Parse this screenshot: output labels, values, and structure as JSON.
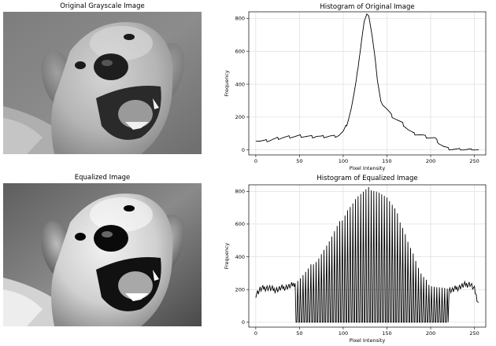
{
  "panels": {
    "original_image": {
      "title": "Original Grayscale Image"
    },
    "equalized_image": {
      "title": "Equalized Image"
    }
  },
  "chart_data": [
    {
      "type": "line",
      "title": "Histogram of Original Image",
      "xlabel": "Pixel Intensity",
      "ylabel": "Frequency",
      "xlim": [
        -8,
        263
      ],
      "ylim": [
        -30,
        840
      ],
      "xticks": [
        0,
        50,
        100,
        150,
        200,
        250
      ],
      "yticks": [
        0,
        200,
        400,
        600,
        800
      ],
      "grid": true,
      "series": [
        {
          "color": "#000000",
          "x": [
            0,
            5,
            10,
            15,
            20,
            25,
            30,
            35,
            40,
            45,
            50,
            55,
            60,
            65,
            70,
            75,
            80,
            85,
            90,
            95,
            100,
            103,
            106,
            109,
            112,
            115,
            118,
            121,
            124,
            127,
            130,
            133,
            136,
            139,
            142,
            145,
            148,
            151,
            155,
            160,
            165,
            170,
            175,
            180,
            185,
            190,
            195,
            200,
            205,
            210,
            215,
            220,
            225,
            230,
            235,
            240,
            245,
            250,
            255
          ],
          "y": [
            60,
            55,
            55,
            58,
            65,
            70,
            75,
            78,
            80,
            82,
            85,
            83,
            82,
            80,
            84,
            80,
            82,
            84,
            82,
            90,
            110,
            140,
            190,
            250,
            330,
            420,
            550,
            670,
            780,
            820,
            800,
            700,
            580,
            420,
            320,
            280,
            260,
            240,
            210,
            190,
            170,
            150,
            120,
            100,
            95,
            90,
            80,
            75,
            70,
            40,
            20,
            8,
            5,
            3,
            2,
            2,
            1,
            1,
            0
          ]
        }
      ]
    },
    {
      "type": "line",
      "title": "Histogram of Equalized Image",
      "xlabel": "Pixel Intensity",
      "ylabel": "Frequency",
      "xlim": [
        -8,
        263
      ],
      "ylim": [
        -30,
        840
      ],
      "xticks": [
        0,
        50,
        100,
        150,
        200,
        250
      ],
      "yticks": [
        0,
        200,
        400,
        600,
        800
      ],
      "grid": true,
      "series": [
        {
          "color": "#000000",
          "x": [
            0,
            5,
            10,
            15,
            20,
            25,
            30,
            35,
            40,
            45,
            50,
            55,
            60,
            65,
            70,
            75,
            80,
            85,
            90,
            95,
            100,
            105,
            110,
            115,
            120,
            125,
            130,
            135,
            140,
            145,
            150,
            155,
            160,
            165,
            170,
            175,
            180,
            185,
            190,
            195,
            200,
            205,
            210,
            215,
            220,
            225,
            230,
            235,
            240,
            245,
            250,
            255
          ],
          "y": [
            170,
            200,
            210,
            210,
            200,
            200,
            210,
            215,
            220,
            240,
            260,
            290,
            320,
            360,
            380,
            420,
            460,
            500,
            550,
            600,
            640,
            690,
            720,
            760,
            780,
            800,
            820,
            810,
            800,
            780,
            760,
            720,
            680,
            620,
            560,
            480,
            420,
            340,
            280,
            250,
            230,
            220,
            215,
            210,
            200,
            195,
            210,
            220,
            230,
            235,
            200,
            110
          ],
          "comb_start": 45,
          "comb_end": 220
        }
      ]
    }
  ]
}
